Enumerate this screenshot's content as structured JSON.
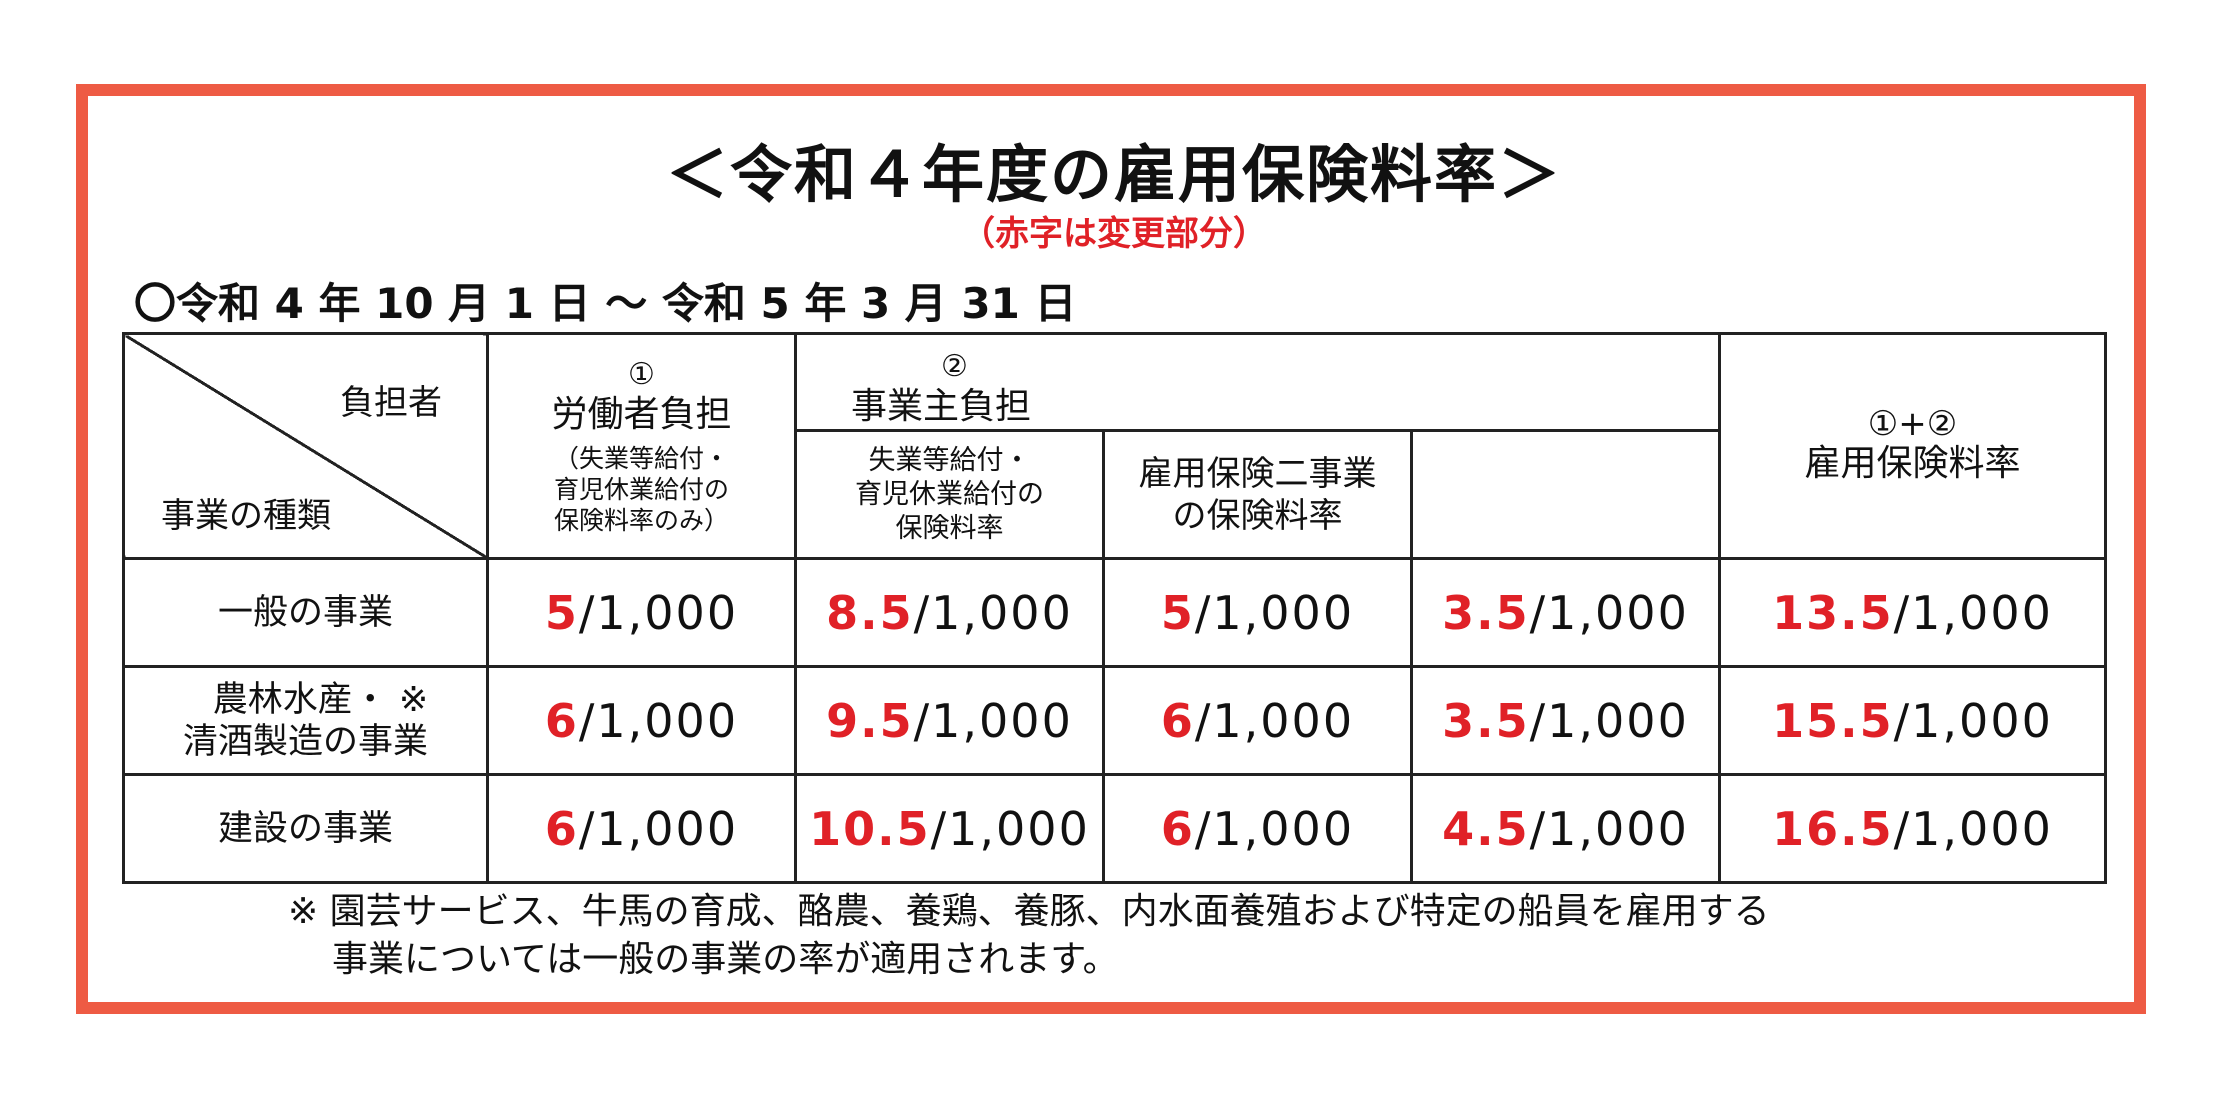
{
  "title": "＜令和４年度の雇用保険料率＞",
  "subtitle": "（赤字は変更部分）",
  "period": "〇令和 4 年 10 月 1 日 〜 令和 5 年 3 月 31 日",
  "header": {
    "corner_top": "負担者",
    "corner_bottom": "事業の種類",
    "worker": {
      "num": "①",
      "label": "労働者負担",
      "note_line1": "（失業等給付・",
      "note_line2": "育児休業給付の",
      "note_line3": "保険料率のみ）"
    },
    "employer": {
      "num": "②",
      "label": "事業主負担",
      "sub1_line1": "失業等給付・",
      "sub1_line2": "育児休業給付の",
      "sub1_line3": "保険料率",
      "sub2_line1": "雇用保険二事業",
      "sub2_line2": "の保険料率"
    },
    "total": {
      "num": "①+②",
      "label": "雇用保険料率"
    }
  },
  "rows": [
    {
      "label_line1": "一般の事業",
      "label_line2": "",
      "worker": "5",
      "employer": "8.5",
      "emp_sub1": "5",
      "emp_sub2": "3.5",
      "total": "13.5"
    },
    {
      "label_line1": "農林水産・ ※",
      "label_line2": "清酒製造の事業",
      "worker": "6",
      "employer": "9.5",
      "emp_sub1": "6",
      "emp_sub2": "3.5",
      "total": "15.5"
    },
    {
      "label_line1": "建設の事業",
      "label_line2": "",
      "worker": "6",
      "employer": "10.5",
      "emp_sub1": "6",
      "emp_sub2": "4.5",
      "total": "16.5"
    }
  ],
  "denominator": "/1,000",
  "footnote_line1": "※ 園芸サービス、牛馬の育成、酪農、養鶏、養豚、内水面養殖および特定の船員を雇用する",
  "footnote_line2": "事業については一般の事業の率が適用されます。",
  "colors": {
    "accent_red": "#e02127",
    "frame": "#ee5b44"
  }
}
